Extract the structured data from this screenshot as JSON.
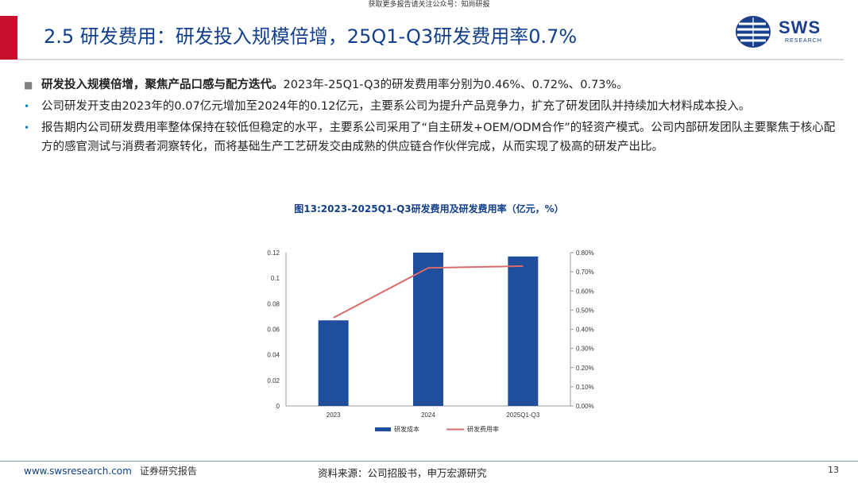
{
  "top_note": "获取更多报告请关注公众号：知尚研报",
  "title": "2.5 研发费用：研发投入规模倍增，25Q1-Q3研发费用率0.7%",
  "logo": {
    "text": "SWS",
    "sub": "RESEARCH",
    "icon": "sws-globe-icon"
  },
  "bullets": [
    {
      "marker": "■",
      "bold": "研发投入规模倍增，聚焦产品口感与配方迭代。",
      "text": "2023年-25Q1-Q3的研发费用率分别为0.46%、0.72%、0.73%。"
    },
    {
      "marker": "•",
      "bold": "",
      "text": "公司研发开支由2023年的0.07亿元增加至2024年的0.12亿元，主要系公司为提升产品竞争力，扩充了研发团队并持续加大材料成本投入。"
    },
    {
      "marker": "•",
      "bold": "",
      "text": "报告期内公司研发费用率整体保持在较低但稳定的水平，主要系公司采用了“自主研发+OEM/ODM合作”的轻资产模式。公司内部研发团队主要聚焦于核心配方的感官测试与消费者洞察转化，而将基础生产工艺研发交由成熟的供应链合作伙伴完成，从而实现了极高的研发产出比。"
    }
  ],
  "chart_data": {
    "type": "bar",
    "title": "图13:2023-2025Q1-Q3研发费用及研发费用率（亿元，%）",
    "categories": [
      "2023",
      "2024",
      "2025Q1-Q3"
    ],
    "series": [
      {
        "name": "研发成本",
        "type": "bar",
        "axis": "left",
        "values": [
          0.067,
          0.12,
          0.117
        ],
        "color": "#1f4e9c"
      },
      {
        "name": "研发费用率",
        "type": "line",
        "axis": "right",
        "values": [
          0.46,
          0.72,
          0.73
        ],
        "color": "#d96b6b"
      }
    ],
    "y_left": {
      "min": 0,
      "max": 0.12,
      "ticks": [
        "0",
        "0.02",
        "0.04",
        "0.06",
        "0.08",
        "0.1",
        "0.12"
      ]
    },
    "y_right": {
      "min": 0,
      "max": 0.8,
      "ticks": [
        "0.00%",
        "0.10%",
        "0.20%",
        "0.30%",
        "0.40%",
        "0.50%",
        "0.60%",
        "0.70%",
        "0.80%"
      ]
    },
    "grid": false,
    "legend_position": "bottom"
  },
  "footer": {
    "website": "www.swsresearch.com",
    "label": "证券研究报告",
    "source": "资料来源：公司招股书，申万宏源研究",
    "page": "13"
  }
}
